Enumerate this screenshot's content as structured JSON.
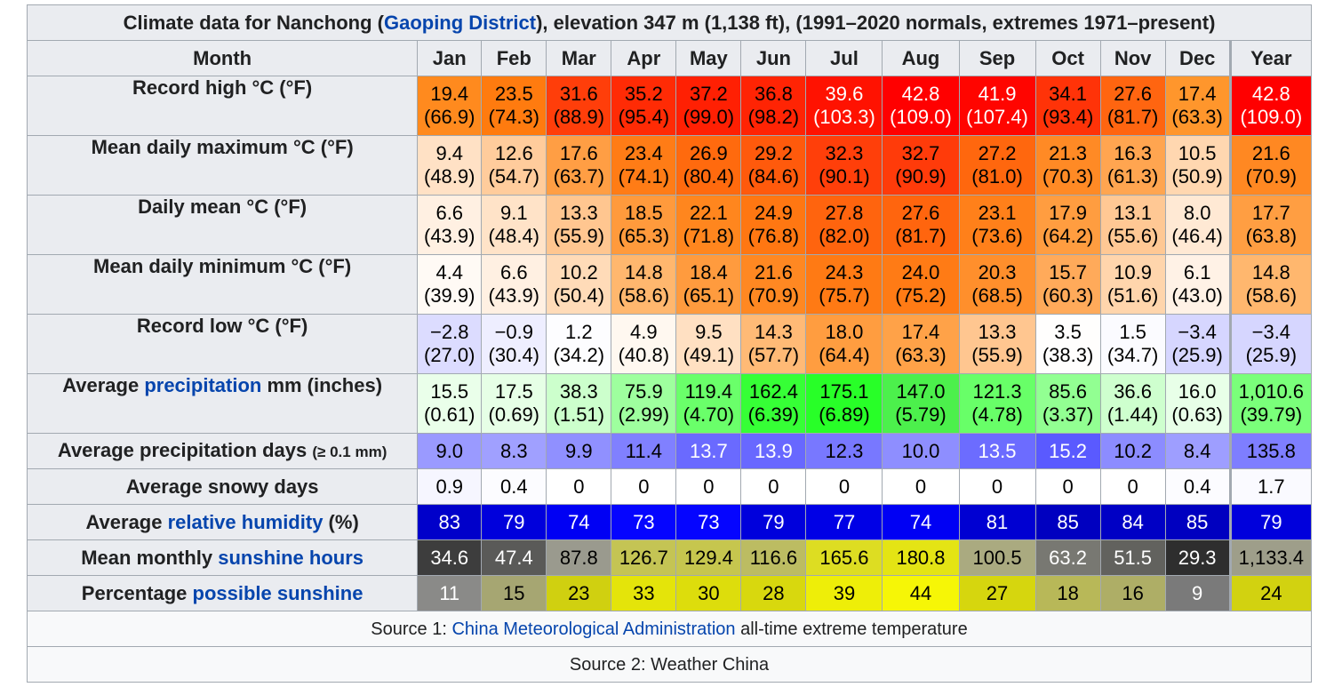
{
  "title": {
    "prefix": "Climate data for Nanchong (",
    "link": "Gaoping District",
    "suffix": "), elevation 347 m (1,138 ft), (1991–2020 normals, extremes 1971–present)"
  },
  "columns": [
    "Month",
    "Jan",
    "Feb",
    "Mar",
    "Apr",
    "May",
    "Jun",
    "Jul",
    "Aug",
    "Sep",
    "Oct",
    "Nov",
    "Dec",
    "Year"
  ],
  "rows": [
    {
      "label": [
        {
          "text": "Record high °C (°F)"
        }
      ],
      "two_line": true,
      "cells": [
        {
          "v": "19.4",
          "s": "(66.9)",
          "bg": "#ff8a1e",
          "fg": "#000000"
        },
        {
          "v": "23.5",
          "s": "(74.3)",
          "bg": "#ff7b0f",
          "fg": "#000000"
        },
        {
          "v": "31.6",
          "s": "(88.9)",
          "bg": "#ff3e0a",
          "fg": "#000000"
        },
        {
          "v": "35.2",
          "s": "(95.4)",
          "bg": "#ff2b05",
          "fg": "#000000"
        },
        {
          "v": "37.2",
          "s": "(99.0)",
          "bg": "#ff2003",
          "fg": "#000000"
        },
        {
          "v": "36.8",
          "s": "(98.2)",
          "bg": "#ff2404",
          "fg": "#000000"
        },
        {
          "v": "39.6",
          "s": "(103.3)",
          "bg": "#ff1201",
          "fg": "#ffffff"
        },
        {
          "v": "42.8",
          "s": "(109.0)",
          "bg": "#ff0000",
          "fg": "#ffffff"
        },
        {
          "v": "41.9",
          "s": "(107.4)",
          "bg": "#ff0500",
          "fg": "#ffffff"
        },
        {
          "v": "34.1",
          "s": "(93.4)",
          "bg": "#ff3308",
          "fg": "#000000"
        },
        {
          "v": "27.6",
          "s": "(81.7)",
          "bg": "#ff6510",
          "fg": "#000000"
        },
        {
          "v": "17.4",
          "s": "(63.3)",
          "bg": "#ff962c",
          "fg": "#000000"
        },
        {
          "v": "42.8",
          "s": "(109.0)",
          "bg": "#ff0000",
          "fg": "#ffffff"
        }
      ]
    },
    {
      "label": [
        {
          "text": "Mean daily maximum °C (°F)"
        }
      ],
      "two_line": true,
      "cells": [
        {
          "v": "9.4",
          "s": "(48.9)",
          "bg": "#ffe1c5",
          "fg": "#000000"
        },
        {
          "v": "12.6",
          "s": "(54.7)",
          "bg": "#ffcc9c",
          "fg": "#000000"
        },
        {
          "v": "17.6",
          "s": "(63.7)",
          "bg": "#ff9e44",
          "fg": "#000000"
        },
        {
          "v": "23.4",
          "s": "(74.1)",
          "bg": "#ff7c16",
          "fg": "#000000"
        },
        {
          "v": "26.9",
          "s": "(80.4)",
          "bg": "#ff6a0e",
          "fg": "#000000"
        },
        {
          "v": "29.2",
          "s": "(84.6)",
          "bg": "#ff5a0c",
          "fg": "#000000"
        },
        {
          "v": "32.3",
          "s": "(90.1)",
          "bg": "#ff3f0a",
          "fg": "#000000"
        },
        {
          "v": "32.7",
          "s": "(90.9)",
          "bg": "#ff3b0a",
          "fg": "#000000"
        },
        {
          "v": "27.2",
          "s": "(81.0)",
          "bg": "#ff670e",
          "fg": "#000000"
        },
        {
          "v": "21.3",
          "s": "(70.3)",
          "bg": "#ff8a25",
          "fg": "#000000"
        },
        {
          "v": "16.3",
          "s": "(61.3)",
          "bg": "#ffa550",
          "fg": "#000000"
        },
        {
          "v": "10.5",
          "s": "(50.9)",
          "bg": "#ffd7b0",
          "fg": "#000000"
        },
        {
          "v": "21.6",
          "s": "(70.9)",
          "bg": "#ff8822",
          "fg": "#000000"
        }
      ]
    },
    {
      "label": [
        {
          "text": "Daily mean °C (°F)"
        }
      ],
      "two_line": true,
      "cells": [
        {
          "v": "6.6",
          "s": "(43.9)",
          "bg": "#fff0e2",
          "fg": "#000000"
        },
        {
          "v": "9.1",
          "s": "(48.4)",
          "bg": "#ffe3c8",
          "fg": "#000000"
        },
        {
          "v": "13.3",
          "s": "(55.9)",
          "bg": "#ffc690",
          "fg": "#000000"
        },
        {
          "v": "18.5",
          "s": "(65.3)",
          "bg": "#ff9a3c",
          "fg": "#000000"
        },
        {
          "v": "22.1",
          "s": "(71.8)",
          "bg": "#ff861e",
          "fg": "#000000"
        },
        {
          "v": "24.9",
          "s": "(76.8)",
          "bg": "#ff7712",
          "fg": "#000000"
        },
        {
          "v": "27.8",
          "s": "(82.0)",
          "bg": "#ff640e",
          "fg": "#000000"
        },
        {
          "v": "27.6",
          "s": "(81.7)",
          "bg": "#ff650e",
          "fg": "#000000"
        },
        {
          "v": "23.1",
          "s": "(73.6)",
          "bg": "#ff801a",
          "fg": "#000000"
        },
        {
          "v": "17.9",
          "s": "(64.2)",
          "bg": "#ff9d40",
          "fg": "#000000"
        },
        {
          "v": "13.1",
          "s": "(55.6)",
          "bg": "#ffc894",
          "fg": "#000000"
        },
        {
          "v": "8.0",
          "s": "(46.4)",
          "bg": "#ffe9d4",
          "fg": "#000000"
        },
        {
          "v": "17.7",
          "s": "(63.8)",
          "bg": "#ff9e42",
          "fg": "#000000"
        }
      ]
    },
    {
      "label": [
        {
          "text": "Mean daily minimum °C (°F)"
        }
      ],
      "two_line": true,
      "cells": [
        {
          "v": "4.4",
          "s": "(39.9)",
          "bg": "#fffaf5",
          "fg": "#000000"
        },
        {
          "v": "6.6",
          "s": "(43.9)",
          "bg": "#fff0e2",
          "fg": "#000000"
        },
        {
          "v": "10.2",
          "s": "(50.4)",
          "bg": "#ffdbb8",
          "fg": "#000000"
        },
        {
          "v": "14.8",
          "s": "(58.6)",
          "bg": "#ffb76e",
          "fg": "#000000"
        },
        {
          "v": "18.4",
          "s": "(65.1)",
          "bg": "#ff9b3e",
          "fg": "#000000"
        },
        {
          "v": "21.6",
          "s": "(70.9)",
          "bg": "#ff8822",
          "fg": "#000000"
        },
        {
          "v": "24.3",
          "s": "(75.7)",
          "bg": "#ff7a14",
          "fg": "#000000"
        },
        {
          "v": "24.0",
          "s": "(75.2)",
          "bg": "#ff7b15",
          "fg": "#000000"
        },
        {
          "v": "20.3",
          "s": "(68.5)",
          "bg": "#ff8f2c",
          "fg": "#000000"
        },
        {
          "v": "15.7",
          "s": "(60.3)",
          "bg": "#ffaa5a",
          "fg": "#000000"
        },
        {
          "v": "10.9",
          "s": "(51.6)",
          "bg": "#ffd5ac",
          "fg": "#000000"
        },
        {
          "v": "6.1",
          "s": "(43.0)",
          "bg": "#fff2e6",
          "fg": "#000000"
        },
        {
          "v": "14.8",
          "s": "(58.6)",
          "bg": "#ffb76e",
          "fg": "#000000"
        }
      ]
    },
    {
      "label": [
        {
          "text": "Record low °C (°F)"
        }
      ],
      "two_line": true,
      "cells": [
        {
          "v": "−2.8",
          "s": "(27.0)",
          "bg": "#dcdcff",
          "fg": "#000000"
        },
        {
          "v": "−0.9",
          "s": "(30.4)",
          "bg": "#eeeeff",
          "fg": "#000000"
        },
        {
          "v": "1.2",
          "s": "(34.2)",
          "bg": "#fdfdff",
          "fg": "#000000"
        },
        {
          "v": "4.9",
          "s": "(40.8)",
          "bg": "#fff8f0",
          "fg": "#000000"
        },
        {
          "v": "9.5",
          "s": "(49.1)",
          "bg": "#ffe0c2",
          "fg": "#000000"
        },
        {
          "v": "14.3",
          "s": "(57.7)",
          "bg": "#ffba76",
          "fg": "#000000"
        },
        {
          "v": "18.0",
          "s": "(64.4)",
          "bg": "#ff9d40",
          "fg": "#000000"
        },
        {
          "v": "17.4",
          "s": "(63.3)",
          "bg": "#ffa248",
          "fg": "#000000"
        },
        {
          "v": "13.3",
          "s": "(55.9)",
          "bg": "#ffc690",
          "fg": "#000000"
        },
        {
          "v": "3.5",
          "s": "(38.3)",
          "bg": "#fffefd",
          "fg": "#000000"
        },
        {
          "v": "1.5",
          "s": "(34.7)",
          "bg": "#fbfbff",
          "fg": "#000000"
        },
        {
          "v": "−3.4",
          "s": "(25.9)",
          "bg": "#d6d6ff",
          "fg": "#000000"
        },
        {
          "v": "−3.4",
          "s": "(25.9)",
          "bg": "#d6d6ff",
          "fg": "#000000"
        }
      ]
    },
    {
      "label": [
        {
          "text": "Average "
        },
        {
          "text": "precipitation",
          "link": true
        },
        {
          "text": " mm (inches)"
        }
      ],
      "two_line": true,
      "cells": [
        {
          "v": "15.5",
          "s": "(0.61)",
          "bg": "#eaffea",
          "fg": "#000000"
        },
        {
          "v": "17.5",
          "s": "(0.69)",
          "bg": "#e6ffe6",
          "fg": "#000000"
        },
        {
          "v": "38.3",
          "s": "(1.51)",
          "bg": "#ccffcc",
          "fg": "#000000"
        },
        {
          "v": "75.9",
          "s": "(2.99)",
          "bg": "#9eff9e",
          "fg": "#000000"
        },
        {
          "v": "119.4",
          "s": "(4.70)",
          "bg": "#6aff6a",
          "fg": "#000000"
        },
        {
          "v": "162.4",
          "s": "(6.39)",
          "bg": "#36ff36",
          "fg": "#000000"
        },
        {
          "v": "175.1",
          "s": "(6.89)",
          "bg": "#28ff28",
          "fg": "#000000"
        },
        {
          "v": "147.0",
          "s": "(5.79)",
          "bg": "#4cf04c",
          "fg": "#000000"
        },
        {
          "v": "121.3",
          "s": "(4.78)",
          "bg": "#68ff68",
          "fg": "#000000"
        },
        {
          "v": "85.6",
          "s": "(3.37)",
          "bg": "#92ff92",
          "fg": "#000000"
        },
        {
          "v": "36.6",
          "s": "(1.44)",
          "bg": "#ceffce",
          "fg": "#000000"
        },
        {
          "v": "16.0",
          "s": "(0.63)",
          "bg": "#e8ffe8",
          "fg": "#000000"
        },
        {
          "v": "1,010.6",
          "s": "(39.79)",
          "bg": "#7aff7a",
          "fg": "#000000"
        }
      ]
    },
    {
      "label": [
        {
          "text": "Average precipitation days "
        },
        {
          "text": "(≥ 0.1 mm)",
          "small": true
        }
      ],
      "two_line": false,
      "cells": [
        {
          "v": "9.0",
          "bg": "#9a9aff",
          "fg": "#000000"
        },
        {
          "v": "8.3",
          "bg": "#a0a0ff",
          "fg": "#000000"
        },
        {
          "v": "9.9",
          "bg": "#9090ff",
          "fg": "#000000"
        },
        {
          "v": "11.4",
          "bg": "#8080ff",
          "fg": "#000000"
        },
        {
          "v": "13.7",
          "bg": "#6a6aff",
          "fg": "#ffffff"
        },
        {
          "v": "13.9",
          "bg": "#6868ff",
          "fg": "#ffffff"
        },
        {
          "v": "12.3",
          "bg": "#7878ff",
          "fg": "#000000"
        },
        {
          "v": "10.0",
          "bg": "#8e8eff",
          "fg": "#000000"
        },
        {
          "v": "13.5",
          "bg": "#6c6cff",
          "fg": "#ffffff"
        },
        {
          "v": "15.2",
          "bg": "#5a5aff",
          "fg": "#ffffff"
        },
        {
          "v": "10.2",
          "bg": "#8c8cff",
          "fg": "#000000"
        },
        {
          "v": "8.4",
          "bg": "#9e9eff",
          "fg": "#000000"
        },
        {
          "v": "135.8",
          "bg": "#7e7eff",
          "fg": "#000000"
        }
      ]
    },
    {
      "label": [
        {
          "text": "Average snowy days"
        }
      ],
      "two_line": false,
      "cells": [
        {
          "v": "0.9",
          "bg": "#f6f6ff",
          "fg": "#000000"
        },
        {
          "v": "0.4",
          "bg": "#fcfcff",
          "fg": "#000000"
        },
        {
          "v": "0",
          "bg": "#ffffff",
          "fg": "#000000"
        },
        {
          "v": "0",
          "bg": "#ffffff",
          "fg": "#000000"
        },
        {
          "v": "0",
          "bg": "#ffffff",
          "fg": "#000000"
        },
        {
          "v": "0",
          "bg": "#ffffff",
          "fg": "#000000"
        },
        {
          "v": "0",
          "bg": "#ffffff",
          "fg": "#000000"
        },
        {
          "v": "0",
          "bg": "#ffffff",
          "fg": "#000000"
        },
        {
          "v": "0",
          "bg": "#ffffff",
          "fg": "#000000"
        },
        {
          "v": "0",
          "bg": "#ffffff",
          "fg": "#000000"
        },
        {
          "v": "0",
          "bg": "#ffffff",
          "fg": "#000000"
        },
        {
          "v": "0.4",
          "bg": "#fcfcff",
          "fg": "#000000"
        },
        {
          "v": "1.7",
          "bg": "#fafaff",
          "fg": "#000000"
        }
      ]
    },
    {
      "label": [
        {
          "text": "Average "
        },
        {
          "text": "relative humidity",
          "link": true
        },
        {
          "text": " (%)"
        }
      ],
      "two_line": false,
      "cells": [
        {
          "v": "83",
          "bg": "#0000ca",
          "fg": "#ffffff"
        },
        {
          "v": "79",
          "bg": "#0000dc",
          "fg": "#ffffff"
        },
        {
          "v": "74",
          "bg": "#0000f4",
          "fg": "#ffffff"
        },
        {
          "v": "73",
          "bg": "#0505ff",
          "fg": "#ffffff"
        },
        {
          "v": "73",
          "bg": "#0505ff",
          "fg": "#ffffff"
        },
        {
          "v": "79",
          "bg": "#0000dc",
          "fg": "#ffffff"
        },
        {
          "v": "77",
          "bg": "#0000e6",
          "fg": "#ffffff"
        },
        {
          "v": "74",
          "bg": "#0000f4",
          "fg": "#ffffff"
        },
        {
          "v": "81",
          "bg": "#0000d2",
          "fg": "#ffffff"
        },
        {
          "v": "85",
          "bg": "#0000c0",
          "fg": "#ffffff"
        },
        {
          "v": "84",
          "bg": "#0000c5",
          "fg": "#ffffff"
        },
        {
          "v": "85",
          "bg": "#0000c0",
          "fg": "#ffffff"
        },
        {
          "v": "79",
          "bg": "#0000dc",
          "fg": "#ffffff"
        }
      ]
    },
    {
      "label": [
        {
          "text": "Mean monthly "
        },
        {
          "text": "sunshine hours",
          "link": true
        }
      ],
      "two_line": false,
      "cells": [
        {
          "v": "34.6",
          "bg": "#3d3d3d",
          "fg": "#ffffff"
        },
        {
          "v": "47.4",
          "bg": "#5a5a58",
          "fg": "#ffffff"
        },
        {
          "v": "87.8",
          "bg": "#9a9a8e",
          "fg": "#000000"
        },
        {
          "v": "126.7",
          "bg": "#c4c454",
          "fg": "#000000"
        },
        {
          "v": "129.4",
          "bg": "#c6c64e",
          "fg": "#000000"
        },
        {
          "v": "116.6",
          "bg": "#bcbc62",
          "fg": "#000000"
        },
        {
          "v": "165.6",
          "bg": "#dddd22",
          "fg": "#000000"
        },
        {
          "v": "180.8",
          "bg": "#e4e414",
          "fg": "#000000"
        },
        {
          "v": "100.5",
          "bg": "#aaaa80",
          "fg": "#000000"
        },
        {
          "v": "63.2",
          "bg": "#787872",
          "fg": "#ffffff"
        },
        {
          "v": "51.5",
          "bg": "#62625e",
          "fg": "#ffffff"
        },
        {
          "v": "29.3",
          "bg": "#2e2e2e",
          "fg": "#ffffff"
        },
        {
          "v": "1,133.4",
          "bg": "#9e9e8a",
          "fg": "#000000"
        }
      ]
    },
    {
      "label": [
        {
          "text": "Percentage "
        },
        {
          "text": "possible sunshine",
          "link": true
        }
      ],
      "two_line": false,
      "cells": [
        {
          "v": "11",
          "bg": "#8a8a88",
          "fg": "#ffffff"
        },
        {
          "v": "15",
          "bg": "#a6a672",
          "fg": "#000000"
        },
        {
          "v": "23",
          "bg": "#d0d010",
          "fg": "#000000"
        },
        {
          "v": "33",
          "bg": "#e4e40a",
          "fg": "#000000"
        },
        {
          "v": "30",
          "bg": "#dddd0c",
          "fg": "#000000"
        },
        {
          "v": "28",
          "bg": "#d8d80e",
          "fg": "#000000"
        },
        {
          "v": "39",
          "bg": "#eeee08",
          "fg": "#000000"
        },
        {
          "v": "44",
          "bg": "#f6f606",
          "fg": "#000000"
        },
        {
          "v": "27",
          "bg": "#d6d60e",
          "fg": "#000000"
        },
        {
          "v": "18",
          "bg": "#b8b858",
          "fg": "#000000"
        },
        {
          "v": "16",
          "bg": "#aeae66",
          "fg": "#000000"
        },
        {
          "v": "9",
          "bg": "#7a7a7a",
          "fg": "#ffffff"
        },
        {
          "v": "24",
          "bg": "#d2d210",
          "fg": "#000000"
        }
      ]
    }
  ],
  "sources": [
    {
      "prefix": "Source 1: ",
      "link": "China Meteorological Administration",
      "suffix": " all-time extreme temperature"
    },
    {
      "prefix": "Source 2: ",
      "link": "",
      "suffix": "Weather China"
    }
  ]
}
